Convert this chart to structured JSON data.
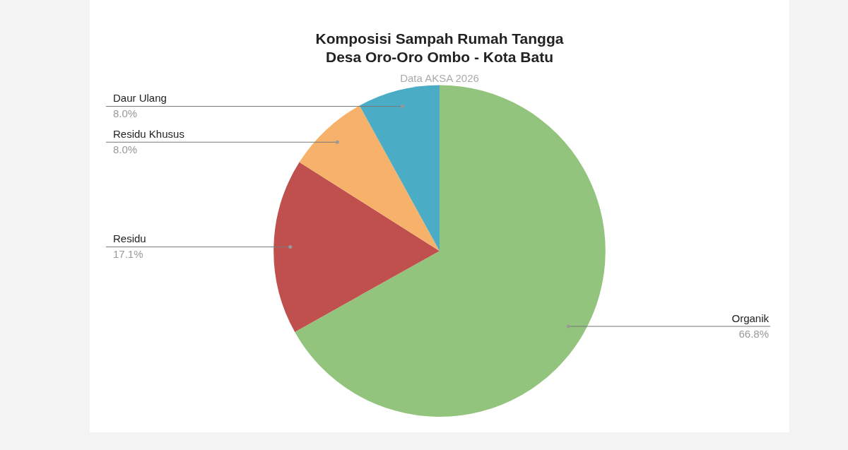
{
  "chart_data": {
    "type": "pie",
    "title": "Komposisi Sampah Rumah Tangga\nDesa Oro-Oro Ombo - Kota Batu",
    "subtitle": "Data AKSA 2026",
    "categories": [
      "Organik",
      "Residu",
      "Residu Khusus",
      "Daur Ulang"
    ],
    "values": [
      66.8,
      17.1,
      8.0,
      8.0
    ],
    "colors": [
      "#93c47d",
      "#c0504d",
      "#f6b26b",
      "#4bacc6"
    ],
    "value_labels": [
      "66.8%",
      "17.1%",
      "8.0%",
      "8.0%"
    ],
    "legend": false
  }
}
